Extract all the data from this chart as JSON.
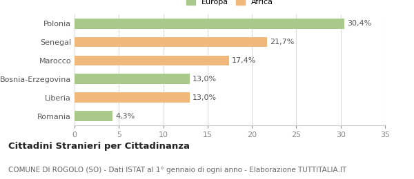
{
  "categories": [
    "Polonia",
    "Senegal",
    "Marocco",
    "Bosnia-Erzegovina",
    "Liberia",
    "Romania"
  ],
  "values": [
    30.4,
    21.7,
    17.4,
    13.0,
    13.0,
    4.3
  ],
  "labels": [
    "30,4%",
    "21,7%",
    "17,4%",
    "13,0%",
    "13,0%",
    "4,3%"
  ],
  "colors": [
    "#a8c98a",
    "#f0b87a",
    "#f0b87a",
    "#a8c98a",
    "#f0b87a",
    "#a8c98a"
  ],
  "legend_labels": [
    "Europa",
    "Africa"
  ],
  "legend_colors": [
    "#a8c98a",
    "#f0b87a"
  ],
  "xlim": [
    0,
    35
  ],
  "xticks": [
    0,
    5,
    10,
    15,
    20,
    25,
    30,
    35
  ],
  "title_main": "Cittadini Stranieri per Cittadinanza",
  "title_sub": "COMUNE DI ROGOLO (SO) - Dati ISTAT al 1° gennaio di ogni anno - Elaborazione TUTTITALIA.IT",
  "bg_color": "#ffffff",
  "bar_height": 0.55,
  "label_fontsize": 8,
  "tick_fontsize": 8,
  "title_fontsize": 9.5,
  "subtitle_fontsize": 7.5
}
